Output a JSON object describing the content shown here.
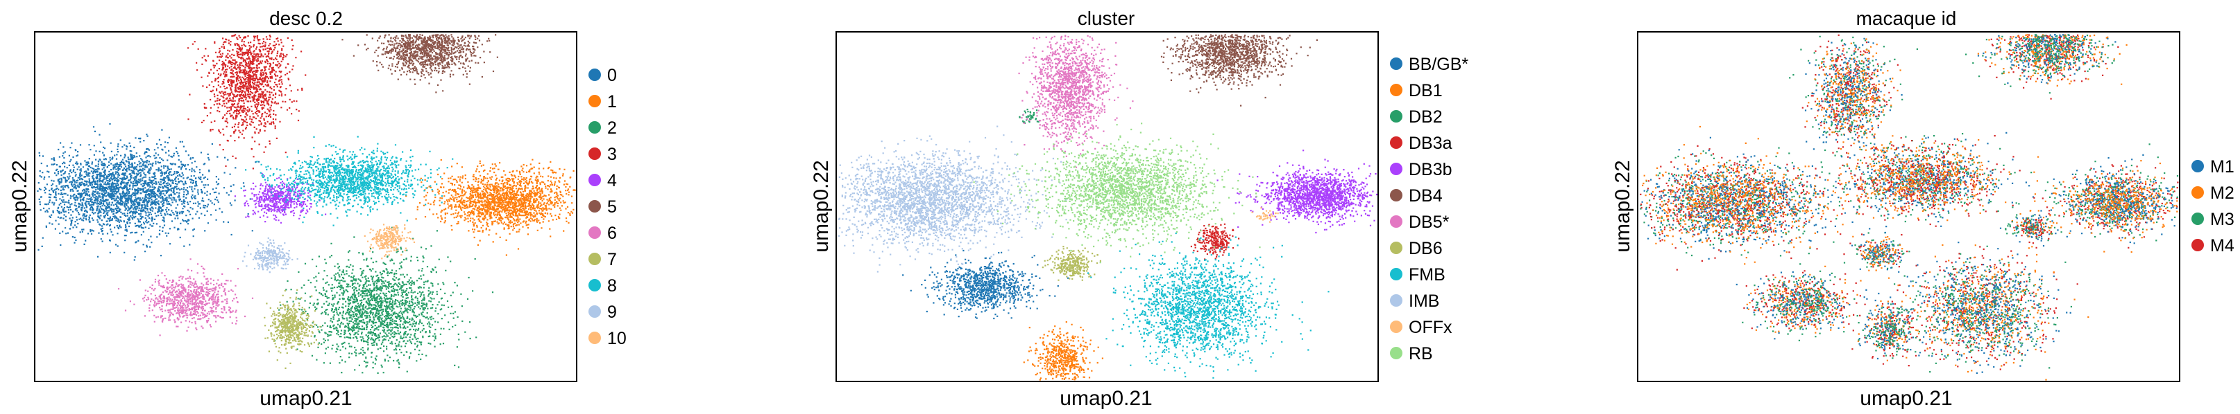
{
  "chart_data": [
    {
      "type": "scatter",
      "title": "desc 0.2",
      "xlabel": "umap0.21",
      "ylabel": "umap0.22",
      "grid": false,
      "legend": "right",
      "series": [
        {
          "name": "0",
          "color": "#1f77b4",
          "cluster": {
            "x": -0.72,
            "y": 0.1,
            "sx": 0.17,
            "sy": 0.125,
            "n": 2600
          }
        },
        {
          "name": "1",
          "color": "#ff7f0e",
          "cluster": {
            "x": 0.78,
            "y": 0.04,
            "sx": 0.125,
            "sy": 0.085,
            "n": 1800
          }
        },
        {
          "name": "2",
          "color": "#279e68",
          "cluster": {
            "x": 0.28,
            "y": -0.62,
            "sx": 0.13,
            "sy": 0.15,
            "n": 1800
          }
        },
        {
          "name": "3",
          "color": "#d62728",
          "cluster": {
            "x": -0.23,
            "y": 0.78,
            "sx": 0.075,
            "sy": 0.16,
            "n": 1400
          }
        },
        {
          "name": "4",
          "color": "#aa40fc",
          "cluster": {
            "x": -0.1,
            "y": 0.05,
            "sx": 0.06,
            "sy": 0.055,
            "n": 500
          }
        },
        {
          "name": "5",
          "color": "#8c564b",
          "cluster": {
            "x": 0.48,
            "y": 0.97,
            "sx": 0.095,
            "sy": 0.085,
            "n": 1300
          }
        },
        {
          "name": "6",
          "color": "#e377c2",
          "cluster": {
            "x": -0.46,
            "y": -0.56,
            "sx": 0.085,
            "sy": 0.07,
            "n": 800
          }
        },
        {
          "name": "7",
          "color": "#b5bd61",
          "cluster": {
            "x": -0.06,
            "y": -0.72,
            "sx": 0.04,
            "sy": 0.065,
            "n": 500
          }
        },
        {
          "name": "8",
          "color": "#17becf",
          "cluster": {
            "x": 0.18,
            "y": 0.17,
            "sx": 0.13,
            "sy": 0.08,
            "n": 1500
          }
        },
        {
          "name": "9",
          "color": "#aec7e8",
          "cluster": {
            "x": -0.14,
            "y": -0.3,
            "sx": 0.04,
            "sy": 0.04,
            "n": 250
          }
        },
        {
          "name": "10",
          "color": "#ffbb78",
          "cluster": {
            "x": 0.32,
            "y": -0.19,
            "sx": 0.035,
            "sy": 0.04,
            "n": 250
          }
        }
      ]
    },
    {
      "type": "scatter",
      "title": "cluster",
      "xlabel": "umap0.21",
      "ylabel": "umap0.22",
      "grid": false,
      "legend": "right",
      "series": [
        {
          "name": "BB/GB*",
          "color": "#1f77b4",
          "cluster": {
            "x": -0.48,
            "y": -0.48,
            "sx": 0.09,
            "sy": 0.07,
            "n": 900
          }
        },
        {
          "name": "DB1",
          "color": "#ff7f0e",
          "cluster": {
            "x": -0.18,
            "y": -0.92,
            "sx": 0.05,
            "sy": 0.08,
            "n": 500
          }
        },
        {
          "name": "DB2",
          "color": "#279e68",
          "cluster": {
            "x": -0.3,
            "y": 0.55,
            "sx": 0.02,
            "sy": 0.03,
            "n": 40
          }
        },
        {
          "name": "DB3a",
          "color": "#d62728",
          "cluster": {
            "x": 0.42,
            "y": -0.2,
            "sx": 0.035,
            "sy": 0.04,
            "n": 250
          }
        },
        {
          "name": "DB3b",
          "color": "#aa40fc",
          "cluster": {
            "x": 0.82,
            "y": 0.07,
            "sx": 0.1,
            "sy": 0.07,
            "n": 1500
          }
        },
        {
          "name": "DB4",
          "color": "#8c564b",
          "cluster": {
            "x": 0.48,
            "y": 0.94,
            "sx": 0.095,
            "sy": 0.085,
            "n": 1300
          }
        },
        {
          "name": "DB5*",
          "color": "#e377c2",
          "cluster": {
            "x": -0.15,
            "y": 0.73,
            "sx": 0.07,
            "sy": 0.16,
            "n": 1400
          }
        },
        {
          "name": "DB6",
          "color": "#b5bd61",
          "cluster": {
            "x": -0.14,
            "y": -0.35,
            "sx": 0.04,
            "sy": 0.04,
            "n": 300
          }
        },
        {
          "name": "FMB",
          "color": "#17becf",
          "cluster": {
            "x": 0.35,
            "y": -0.62,
            "sx": 0.13,
            "sy": 0.15,
            "n": 1800
          }
        },
        {
          "name": "IMB",
          "color": "#aec7e8",
          "cluster": {
            "x": -0.7,
            "y": 0.05,
            "sx": 0.17,
            "sy": 0.13,
            "n": 2600
          }
        },
        {
          "name": "OFFx",
          "color": "#ffbb78",
          "cluster": {
            "x": 0.62,
            "y": -0.05,
            "sx": 0.02,
            "sy": 0.02,
            "n": 40
          }
        },
        {
          "name": "RB",
          "color": "#98df8a",
          "cluster": {
            "x": 0.08,
            "y": 0.1,
            "sx": 0.16,
            "sy": 0.13,
            "n": 2100
          }
        }
      ]
    },
    {
      "type": "scatter",
      "title": "macaque id",
      "xlabel": "umap0.21",
      "ylabel": "umap0.22",
      "grid": false,
      "legend": "right",
      "series": [
        {
          "name": "M1",
          "color": "#1f77b4"
        },
        {
          "name": "M2",
          "color": "#ff7f0e"
        },
        {
          "name": "M3",
          "color": "#279e68"
        },
        {
          "name": "M4",
          "color": "#d62728"
        }
      ],
      "cluster_centers": [
        {
          "x": -0.7,
          "y": 0.03,
          "sx": 0.17,
          "sy": 0.12,
          "n": 2600
        },
        {
          "x": 0.82,
          "y": 0.03,
          "sx": 0.11,
          "sy": 0.085,
          "n": 1600
        },
        {
          "x": 0.28,
          "y": -0.62,
          "sx": 0.13,
          "sy": 0.15,
          "n": 1800
        },
        {
          "x": -0.23,
          "y": 0.7,
          "sx": 0.07,
          "sy": 0.16,
          "n": 1200
        },
        {
          "x": 0.55,
          "y": 0.97,
          "sx": 0.1,
          "sy": 0.09,
          "n": 1300
        },
        {
          "x": 0.05,
          "y": 0.17,
          "sx": 0.14,
          "sy": 0.1,
          "n": 1800
        },
        {
          "x": -0.42,
          "y": -0.58,
          "sx": 0.09,
          "sy": 0.08,
          "n": 900
        },
        {
          "x": -0.08,
          "y": -0.75,
          "sx": 0.045,
          "sy": 0.075,
          "n": 500
        },
        {
          "x": -0.12,
          "y": -0.28,
          "sx": 0.045,
          "sy": 0.045,
          "n": 300
        },
        {
          "x": 0.48,
          "y": -0.12,
          "sx": 0.04,
          "sy": 0.04,
          "n": 250
        }
      ]
    }
  ]
}
